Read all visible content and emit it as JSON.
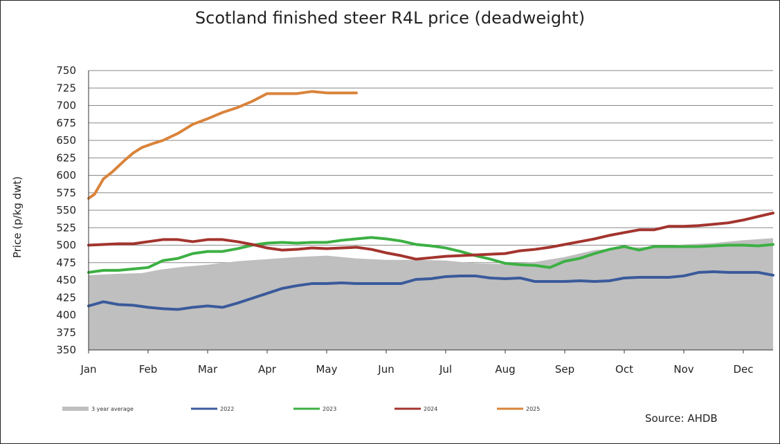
{
  "chart_data": {
    "type": "line",
    "title": "Scotland finished steer R4L price (deadweight)",
    "ylabel": "Price (p/kg dwt)",
    "xlabel": "",
    "ylim": [
      350,
      750
    ],
    "yticks": [
      350,
      375,
      400,
      425,
      450,
      475,
      500,
      525,
      550,
      575,
      600,
      625,
      650,
      675,
      700,
      725,
      750
    ],
    "xlim": [
      0,
      11.5
    ],
    "categories": [
      "Jan",
      "Feb",
      "Mar",
      "Apr",
      "May",
      "Jun",
      "Jul",
      "Aug",
      "Sep",
      "Oct",
      "Nov",
      "Dec"
    ],
    "grid": "horizontal",
    "legend_position": "bottom",
    "series": [
      {
        "name": "3 year average",
        "style": "area",
        "color": "#bfbfbf",
        "x": [
          0,
          0.5,
          0.9,
          1.2,
          1.6,
          2.0,
          2.5,
          3.0,
          3.5,
          4.0,
          4.5,
          5.0,
          5.5,
          6.0,
          6.5,
          7.0,
          7.5,
          8.0,
          8.5,
          9.0,
          9.5,
          10.0,
          10.5,
          11.0,
          11.5
        ],
        "values": [
          457,
          459,
          460,
          465,
          469,
          472,
          477,
          480,
          483,
          485,
          481,
          479,
          479,
          478,
          474,
          473,
          476,
          483,
          493,
          496,
          498,
          501,
          503,
          507,
          510
        ]
      },
      {
        "name": "2022",
        "color": "#3a5a9b",
        "x": [
          0,
          0.25,
          0.5,
          0.75,
          1.0,
          1.25,
          1.5,
          1.75,
          2.0,
          2.25,
          2.5,
          2.75,
          3.0,
          3.25,
          3.5,
          3.75,
          4.0,
          4.25,
          4.5,
          4.75,
          5.0,
          5.25,
          5.5,
          5.75,
          6.0,
          6.25,
          6.5,
          6.75,
          7.0,
          7.25,
          7.5,
          7.75,
          8.0,
          8.25,
          8.5,
          8.75,
          9.0,
          9.25,
          9.5,
          9.75,
          10.0,
          10.25,
          10.5,
          10.75,
          11.0,
          11.25,
          11.5
        ],
        "values": [
          413,
          419,
          415,
          414,
          411,
          409,
          408,
          411,
          413,
          411,
          417,
          424,
          431,
          438,
          442,
          445,
          445,
          446,
          445,
          445,
          445,
          445,
          451,
          452,
          455,
          456,
          456,
          453,
          452,
          453,
          448,
          448,
          448,
          449,
          448,
          449,
          453,
          454,
          454,
          454,
          456,
          461,
          462,
          461,
          461,
          461,
          457
        ]
      },
      {
        "name": "2023",
        "color": "#3cb043",
        "x": [
          0,
          0.25,
          0.5,
          0.75,
          1.0,
          1.25,
          1.5,
          1.75,
          2.0,
          2.25,
          2.5,
          2.75,
          3.0,
          3.25,
          3.5,
          3.75,
          4.0,
          4.25,
          4.5,
          4.75,
          5.0,
          5.25,
          5.5,
          5.75,
          6.0,
          6.25,
          6.5,
          6.75,
          7.0,
          7.25,
          7.5,
          7.75,
          8.0,
          8.25,
          8.5,
          8.75,
          9.0,
          9.25,
          9.5,
          9.75,
          10.0,
          10.25,
          10.5,
          10.75,
          11.0,
          11.25,
          11.5
        ],
        "values": [
          461,
          464,
          464,
          466,
          468,
          478,
          481,
          488,
          491,
          491,
          495,
          500,
          503,
          504,
          503,
          504,
          504,
          507,
          509,
          511,
          509,
          506,
          501,
          499,
          496,
          491,
          485,
          480,
          474,
          472,
          471,
          468,
          477,
          481,
          488,
          494,
          498,
          493,
          498,
          498,
          498,
          498,
          499,
          500,
          500,
          499,
          501
        ]
      },
      {
        "name": "2024",
        "color": "#a3342e",
        "x": [
          0,
          0.25,
          0.5,
          0.75,
          1.0,
          1.25,
          1.5,
          1.75,
          2.0,
          2.25,
          2.5,
          2.75,
          3.0,
          3.25,
          3.5,
          3.75,
          4.0,
          4.25,
          4.5,
          4.75,
          5.0,
          5.25,
          5.5,
          5.75,
          6.0,
          6.25,
          6.5,
          6.75,
          7.0,
          7.25,
          7.5,
          7.75,
          8.0,
          8.25,
          8.5,
          8.75,
          9.0,
          9.25,
          9.5,
          9.75,
          10.0,
          10.25,
          10.5,
          10.75,
          11.0,
          11.25,
          11.5
        ],
        "values": [
          500,
          501,
          502,
          502,
          505,
          508,
          508,
          505,
          508,
          508,
          505,
          501,
          496,
          493,
          494,
          496,
          495,
          496,
          497,
          494,
          489,
          485,
          480,
          482,
          484,
          485,
          486,
          487,
          488,
          492,
          494,
          497,
          501,
          505,
          509,
          514,
          518,
          522,
          522,
          527,
          527,
          528,
          530,
          532,
          536,
          541,
          546
        ]
      },
      {
        "name": "2025",
        "color": "#d9833a",
        "x": [
          0,
          0.1,
          0.25,
          0.4,
          0.6,
          0.75,
          0.9,
          1.1,
          1.25,
          1.5,
          1.75,
          2.0,
          2.25,
          2.5,
          2.75,
          3.0,
          3.25,
          3.5,
          3.75,
          4.0,
          4.15,
          4.5
        ],
        "values": [
          567,
          573,
          595,
          605,
          621,
          632,
          640,
          646,
          650,
          660,
          673,
          681,
          690,
          697,
          706,
          717,
          717,
          717,
          720,
          718,
          718,
          718
        ]
      }
    ]
  },
  "source": "Source: AHDB"
}
